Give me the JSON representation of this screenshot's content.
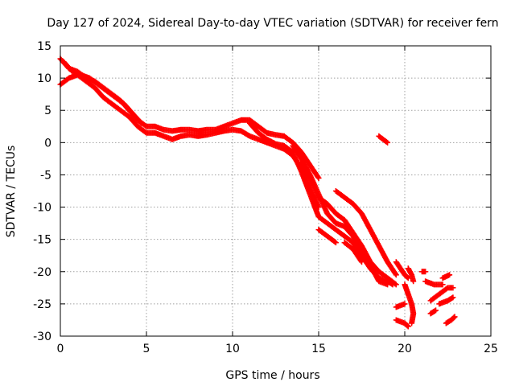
{
  "chart_data": {
    "type": "scatter",
    "title": "Day 127 of 2024, Sidereal Day-to-day VTEC variation (SDTVAR) for receiver fern",
    "xlabel": "GPS time / hours",
    "ylabel": "SDTVAR / TECUs",
    "xlim": [
      0,
      25
    ],
    "ylim": [
      -30,
      15
    ],
    "xticks": [
      0,
      5,
      10,
      15,
      20,
      25
    ],
    "yticks": [
      -30,
      -25,
      -20,
      -15,
      -10,
      -5,
      0,
      5,
      10,
      15
    ],
    "xtick_labels": [
      "0",
      "5",
      "10",
      "15",
      "20",
      "25"
    ],
    "ytick_labels": [
      "-30",
      "-25",
      "-20",
      "-15",
      "-10",
      "-5",
      "0",
      "5",
      "10",
      "15"
    ],
    "grid": true,
    "marker": "plus",
    "series": [
      {
        "name": "SDTVAR",
        "color": "#ff0000",
        "tracks": [
          [
            [
              0.0,
              13.0
            ],
            [
              0.5,
              11.5
            ],
            [
              1.0,
              11.0
            ],
            [
              1.5,
              10.0
            ],
            [
              2.0,
              9.5
            ],
            [
              2.5,
              8.5
            ],
            [
              3.0,
              7.5
            ],
            [
              3.5,
              6.5
            ],
            [
              4.0,
              5.0
            ],
            [
              4.5,
              3.5
            ],
            [
              5.0,
              2.5
            ],
            [
              5.5,
              2.5
            ],
            [
              6.0,
              2.0
            ],
            [
              6.5,
              1.8
            ],
            [
              7.0,
              2.0
            ],
            [
              7.5,
              2.0
            ],
            [
              8.0,
              1.8
            ],
            [
              8.5,
              2.0
            ],
            [
              9.0,
              2.0
            ],
            [
              9.5,
              2.5
            ],
            [
              10.0,
              3.0
            ],
            [
              10.5,
              3.5
            ],
            [
              11.0,
              3.5
            ],
            [
              11.5,
              2.5
            ],
            [
              12.0,
              1.5
            ],
            [
              12.5,
              1.2
            ],
            [
              13.0,
              1.0
            ],
            [
              13.5,
              0.0
            ],
            [
              14.0,
              -1.5
            ],
            [
              14.5,
              -3.5
            ],
            [
              15.0,
              -5.5
            ]
          ],
          [
            [
              0.0,
              9.0
            ],
            [
              0.5,
              10.0
            ],
            [
              1.0,
              10.5
            ],
            [
              1.5,
              9.5
            ],
            [
              2.0,
              8.5
            ],
            [
              2.5,
              7.0
            ],
            [
              3.0,
              6.0
            ],
            [
              3.5,
              5.0
            ],
            [
              4.0,
              4.0
            ],
            [
              4.5,
              2.5
            ],
            [
              5.0,
              1.5
            ],
            [
              5.5,
              1.5
            ],
            [
              6.0,
              1.0
            ],
            [
              6.5,
              0.5
            ],
            [
              7.0,
              1.0
            ],
            [
              7.5,
              1.2
            ],
            [
              8.0,
              1.0
            ],
            [
              8.5,
              1.2
            ],
            [
              9.0,
              1.5
            ],
            [
              9.5,
              1.8
            ],
            [
              10.0,
              2.0
            ],
            [
              10.5,
              1.8
            ],
            [
              11.0,
              1.0
            ],
            [
              11.5,
              0.5
            ],
            [
              12.0,
              0.0
            ],
            [
              12.5,
              -0.5
            ],
            [
              13.0,
              -1.0
            ],
            [
              13.5,
              -2.0
            ],
            [
              14.0,
              -4.0
            ],
            [
              14.5,
              -7.0
            ],
            [
              15.0,
              -10.0
            ]
          ],
          [
            [
              0.2,
              12.5
            ],
            [
              0.7,
              11.0
            ],
            [
              1.2,
              10.5
            ],
            [
              1.7,
              10.0
            ],
            [
              2.2,
              9.0
            ],
            [
              2.7,
              8.0
            ],
            [
              3.2,
              7.0
            ],
            [
              3.7,
              6.0
            ],
            [
              4.2,
              4.5
            ],
            [
              4.7,
              3.0
            ]
          ],
          [
            [
              11.0,
              3.0
            ],
            [
              11.5,
              1.5
            ],
            [
              12.0,
              0.5
            ],
            [
              12.5,
              -0.2
            ],
            [
              13.0,
              -0.5
            ],
            [
              13.5,
              -1.5
            ],
            [
              14.0,
              -4.5
            ],
            [
              14.5,
              -8.0
            ],
            [
              15.0,
              -11.5
            ],
            [
              15.5,
              -12.5
            ],
            [
              16.0,
              -13.5
            ],
            [
              16.5,
              -14.5
            ],
            [
              17.0,
              -15.5
            ],
            [
              17.5,
              -17.5
            ],
            [
              18.0,
              -19.5
            ],
            [
              18.5,
              -21.0
            ],
            [
              19.0,
              -21.5
            ],
            [
              19.3,
              -22.0
            ]
          ],
          [
            [
              14.0,
              -3.0
            ],
            [
              14.5,
              -5.5
            ],
            [
              15.0,
              -8.5
            ],
            [
              15.5,
              -9.5
            ],
            [
              16.0,
              -11.0
            ],
            [
              16.5,
              -12.0
            ],
            [
              17.0,
              -14.0
            ],
            [
              17.5,
              -16.0
            ],
            [
              18.0,
              -18.5
            ],
            [
              18.5,
              -20.0
            ],
            [
              19.0,
              -21.0
            ],
            [
              19.5,
              -22.0
            ]
          ],
          [
            [
              13.5,
              -0.5
            ],
            [
              14.0,
              -2.5
            ],
            [
              14.5,
              -5.0
            ],
            [
              15.0,
              -8.0
            ],
            [
              15.5,
              -11.0
            ],
            [
              16.0,
              -12.5
            ],
            [
              16.5,
              -13.0
            ],
            [
              17.0,
              -14.5
            ],
            [
              17.5,
              -17.0
            ],
            [
              18.0,
              -19.0
            ],
            [
              18.5,
              -21.5
            ],
            [
              19.0,
              -22.0
            ]
          ],
          [
            [
              15.0,
              -13.5
            ],
            [
              15.5,
              -14.5
            ],
            [
              16.0,
              -15.5
            ]
          ],
          [
            [
              16.0,
              -7.5
            ],
            [
              16.5,
              -8.5
            ],
            [
              17.0,
              -9.5
            ],
            [
              17.5,
              -11.0
            ],
            [
              18.0,
              -13.5
            ],
            [
              18.5,
              -16.0
            ],
            [
              19.0,
              -18.5
            ],
            [
              19.5,
              -20.5
            ]
          ],
          [
            [
              16.5,
              -15.5
            ],
            [
              17.0,
              -16.5
            ],
            [
              17.5,
              -18.5
            ]
          ],
          [
            [
              18.5,
              1.0
            ],
            [
              19.0,
              0.0
            ]
          ],
          [
            [
              19.5,
              -18.5
            ],
            [
              20.0,
              -20.5
            ],
            [
              20.2,
              -21.0
            ]
          ],
          [
            [
              19.5,
              -25.5
            ],
            [
              20.0,
              -25.0
            ]
          ],
          [
            [
              19.5,
              -27.5
            ],
            [
              20.0,
              -28.0
            ],
            [
              20.2,
              -28.5
            ]
          ],
          [
            [
              20.0,
              -22.0
            ],
            [
              20.2,
              -23.5
            ],
            [
              20.4,
              -25.0
            ],
            [
              20.5,
              -26.5
            ],
            [
              20.4,
              -28.0
            ]
          ],
          [
            [
              20.2,
              -19.5
            ],
            [
              20.4,
              -20.5
            ],
            [
              20.5,
              -21.5
            ]
          ],
          [
            [
              21.0,
              -20.0
            ],
            [
              21.2,
              -20.0
            ]
          ],
          [
            [
              21.2,
              -21.5
            ],
            [
              21.7,
              -22.0
            ],
            [
              22.2,
              -22.0
            ]
          ],
          [
            [
              21.5,
              -24.5
            ],
            [
              22.0,
              -23.5
            ],
            [
              22.5,
              -22.5
            ],
            [
              22.8,
              -22.5
            ]
          ],
          [
            [
              21.5,
              -26.5
            ],
            [
              21.8,
              -26.0
            ]
          ],
          [
            [
              22.0,
              -25.0
            ],
            [
              22.5,
              -24.5
            ],
            [
              22.8,
              -24.0
            ]
          ],
          [
            [
              22.2,
              -21.0
            ],
            [
              22.6,
              -20.5
            ]
          ],
          [
            [
              22.4,
              -28.0
            ],
            [
              22.7,
              -27.5
            ],
            [
              22.9,
              -27.0
            ]
          ]
        ]
      }
    ]
  }
}
